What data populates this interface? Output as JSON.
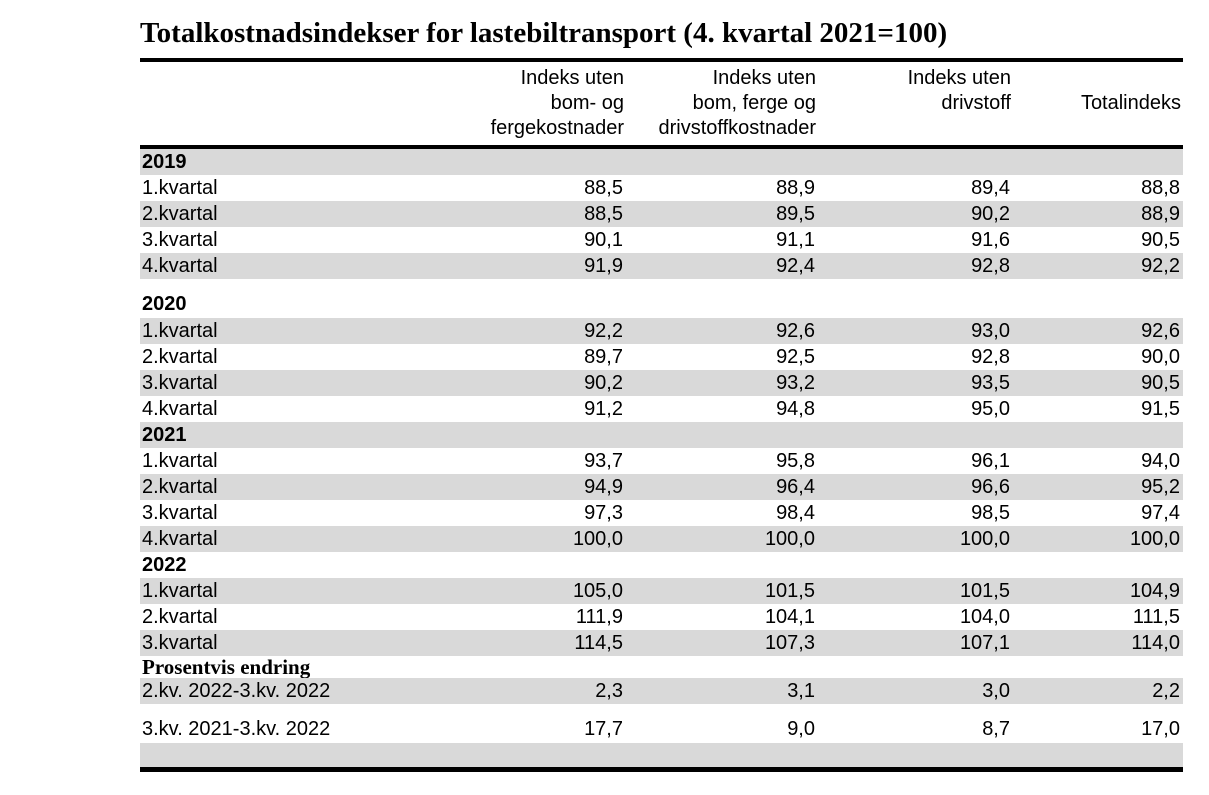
{
  "title": "Totalkostnadsindekser for lastebiltransport (4. kvartal 2021=100)",
  "header": {
    "col1": "Indeks uten\nbom- og\nfergekostnader",
    "col2": "Indeks uten\nbom, ferge og\ndrivstoffkostnader",
    "col3": "Indeks uten\ndrivstoff",
    "col4": "Totalindeks"
  },
  "rows": [
    {
      "label": "2019",
      "values": [
        "",
        "",
        "",
        ""
      ]
    },
    {
      "label": "1.kvartal",
      "values": [
        "88,5",
        "88,9",
        "89,4",
        "88,8"
      ]
    },
    {
      "label": "2.kvartal",
      "values": [
        "88,5",
        "89,5",
        "90,2",
        "88,9"
      ]
    },
    {
      "label": "3.kvartal",
      "values": [
        "90,1",
        "91,1",
        "91,6",
        "90,5"
      ]
    },
    {
      "label": "4.kvartal",
      "values": [
        "91,9",
        "92,4",
        "92,8",
        "92,2"
      ]
    },
    {
      "label": "2020",
      "values": [
        "",
        "",
        "",
        ""
      ]
    },
    {
      "label": "1.kvartal",
      "values": [
        "92,2",
        "92,6",
        "93,0",
        "92,6"
      ]
    },
    {
      "label": "2.kvartal",
      "values": [
        "89,7",
        "92,5",
        "92,8",
        "90,0"
      ]
    },
    {
      "label": "3.kvartal",
      "values": [
        "90,2",
        "93,2",
        "93,5",
        "90,5"
      ]
    },
    {
      "label": "4.kvartal",
      "values": [
        "91,2",
        "94,8",
        "95,0",
        "91,5"
      ]
    },
    {
      "label": "2021",
      "values": [
        "",
        "",
        "",
        ""
      ]
    },
    {
      "label": "1.kvartal",
      "values": [
        "93,7",
        "95,8",
        "96,1",
        "94,0"
      ]
    },
    {
      "label": "2.kvartal",
      "values": [
        "94,9",
        "96,4",
        "96,6",
        "95,2"
      ]
    },
    {
      "label": "3.kvartal",
      "values": [
        "97,3",
        "98,4",
        "98,5",
        "97,4"
      ]
    },
    {
      "label": "4.kvartal",
      "values": [
        "100,0",
        "100,0",
        "100,0",
        "100,0"
      ]
    },
    {
      "label": "2022",
      "values": [
        "",
        "",
        "",
        ""
      ]
    },
    {
      "label": "1.kvartal",
      "values": [
        "105,0",
        "101,5",
        "101,5",
        "104,9"
      ]
    },
    {
      "label": "2.kvartal",
      "values": [
        "111,9",
        "104,1",
        "104,0",
        "111,5"
      ]
    },
    {
      "label": "3.kvartal",
      "values": [
        "114,5",
        "107,3",
        "107,1",
        "114,0"
      ]
    },
    {
      "label": "Prosentvis endring",
      "values": [
        "",
        "",
        "",
        ""
      ]
    },
    {
      "label": "2.kv. 2022-3.kv. 2022",
      "values": [
        "2,3",
        "3,1",
        "3,0",
        "2,2"
      ]
    },
    {
      "label": "3.kv. 2021-3.kv. 2022",
      "values": [
        "17,7",
        "9,0",
        "8,7",
        "17,0"
      ]
    }
  ],
  "colors": {
    "band_gray": "#d9d9d9",
    "rule_black": "#000000"
  }
}
